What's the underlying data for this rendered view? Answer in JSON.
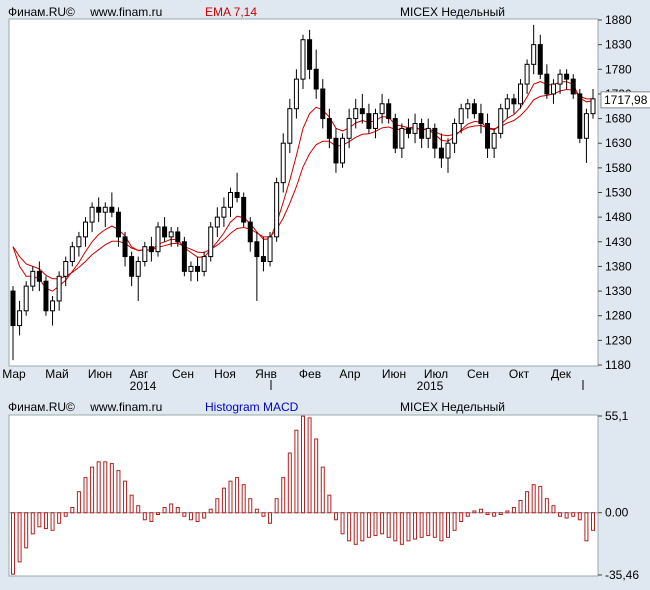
{
  "price_header": {
    "source": "Финам.RU©",
    "site": "www.finam.ru",
    "indicator": "EMA 7,14",
    "instrument": "MICEX Недельный"
  },
  "macd_header": {
    "source": "Финам.RU©",
    "site": "www.finam.ru",
    "indicator": "Histogram MACD",
    "instrument": "MICEX Недельный"
  },
  "colors": {
    "bull": "#ffffff",
    "bear": "#000000",
    "ema": "#cc0000",
    "hist": "#b22222",
    "background": "#dfe8f0",
    "plot": "#ffffff"
  },
  "chart_data": [
    {
      "type": "candlestick",
      "y_ticks": [
        "1880",
        "1830",
        "1780",
        "1730",
        "1680",
        "1630",
        "1580",
        "1530",
        "1480",
        "1430",
        "1380",
        "1330",
        "1280",
        "1230",
        "1180"
      ],
      "ylim": [
        1180,
        1880
      ],
      "last_price_label": "1717,98",
      "x_month_labels": [
        "Мар",
        "Май",
        "Июн",
        "Авг",
        "Сен",
        "Ноя",
        "Янв",
        "Фев",
        "Апр",
        "Июн",
        "Июл",
        "Сен",
        "Окт",
        "Дек"
      ],
      "year_labels": [
        "2014",
        "2015"
      ],
      "candles": [
        [
          1330,
          1340,
          1190,
          1260
        ],
        [
          1260,
          1310,
          1240,
          1290
        ],
        [
          1290,
          1350,
          1280,
          1340
        ],
        [
          1340,
          1380,
          1330,
          1370
        ],
        [
          1370,
          1390,
          1330,
          1350
        ],
        [
          1350,
          1360,
          1280,
          1290
        ],
        [
          1290,
          1320,
          1260,
          1310
        ],
        [
          1310,
          1370,
          1290,
          1360
        ],
        [
          1360,
          1400,
          1340,
          1390
        ],
        [
          1390,
          1430,
          1380,
          1420
        ],
        [
          1420,
          1450,
          1400,
          1440
        ],
        [
          1440,
          1480,
          1420,
          1470
        ],
        [
          1470,
          1510,
          1450,
          1500
        ],
        [
          1500,
          1520,
          1470,
          1490
        ],
        [
          1490,
          1510,
          1460,
          1500
        ],
        [
          1500,
          1530,
          1480,
          1490
        ],
        [
          1490,
          1500,
          1420,
          1440
        ],
        [
          1440,
          1450,
          1380,
          1400
        ],
        [
          1400,
          1410,
          1340,
          1360
        ],
        [
          1360,
          1400,
          1310,
          1390
        ],
        [
          1390,
          1430,
          1380,
          1420
        ],
        [
          1420,
          1440,
          1390,
          1410
        ],
        [
          1410,
          1470,
          1400,
          1460
        ],
        [
          1460,
          1480,
          1430,
          1440
        ],
        [
          1440,
          1460,
          1420,
          1450
        ],
        [
          1450,
          1460,
          1420,
          1430
        ],
        [
          1430,
          1440,
          1360,
          1370
        ],
        [
          1370,
          1390,
          1350,
          1380
        ],
        [
          1380,
          1400,
          1350,
          1370
        ],
        [
          1370,
          1410,
          1360,
          1400
        ],
        [
          1400,
          1470,
          1390,
          1460
        ],
        [
          1460,
          1500,
          1440,
          1480
        ],
        [
          1480,
          1520,
          1460,
          1500
        ],
        [
          1500,
          1540,
          1480,
          1530
        ],
        [
          1530,
          1570,
          1510,
          1520
        ],
        [
          1520,
          1530,
          1460,
          1470
        ],
        [
          1470,
          1480,
          1410,
          1430
        ],
        [
          1430,
          1450,
          1310,
          1400
        ],
        [
          1400,
          1440,
          1370,
          1390
        ],
        [
          1390,
          1450,
          1380,
          1440
        ],
        [
          1440,
          1560,
          1430,
          1550
        ],
        [
          1550,
          1650,
          1530,
          1630
        ],
        [
          1630,
          1720,
          1610,
          1700
        ],
        [
          1700,
          1780,
          1680,
          1760
        ],
        [
          1760,
          1850,
          1740,
          1840
        ],
        [
          1840,
          1860,
          1760,
          1780
        ],
        [
          1780,
          1820,
          1720,
          1740
        ],
        [
          1740,
          1760,
          1660,
          1680
        ],
        [
          1680,
          1700,
          1620,
          1640
        ],
        [
          1640,
          1660,
          1570,
          1590
        ],
        [
          1590,
          1650,
          1580,
          1640
        ],
        [
          1640,
          1700,
          1620,
          1680
        ],
        [
          1680,
          1720,
          1660,
          1700
        ],
        [
          1700,
          1730,
          1670,
          1690
        ],
        [
          1690,
          1710,
          1650,
          1660
        ],
        [
          1660,
          1700,
          1640,
          1690
        ],
        [
          1690,
          1730,
          1670,
          1710
        ],
        [
          1710,
          1720,
          1670,
          1680
        ],
        [
          1680,
          1690,
          1610,
          1620
        ],
        [
          1620,
          1670,
          1600,
          1660
        ],
        [
          1660,
          1680,
          1640,
          1650
        ],
        [
          1650,
          1690,
          1630,
          1670
        ],
        [
          1670,
          1680,
          1620,
          1640
        ],
        [
          1640,
          1680,
          1620,
          1660
        ],
        [
          1660,
          1670,
          1600,
          1620
        ],
        [
          1620,
          1650,
          1580,
          1600
        ],
        [
          1600,
          1640,
          1570,
          1630
        ],
        [
          1630,
          1680,
          1610,
          1670
        ],
        [
          1670,
          1710,
          1650,
          1700
        ],
        [
          1700,
          1720,
          1680,
          1710
        ],
        [
          1710,
          1720,
          1680,
          1690
        ],
        [
          1690,
          1710,
          1650,
          1670
        ],
        [
          1670,
          1690,
          1600,
          1620
        ],
        [
          1620,
          1660,
          1600,
          1650
        ],
        [
          1650,
          1710,
          1640,
          1700
        ],
        [
          1700,
          1730,
          1680,
          1720
        ],
        [
          1720,
          1730,
          1690,
          1710
        ],
        [
          1710,
          1760,
          1700,
          1750
        ],
        [
          1750,
          1800,
          1730,
          1790
        ],
        [
          1790,
          1870,
          1770,
          1830
        ],
        [
          1830,
          1850,
          1760,
          1770
        ],
        [
          1770,
          1790,
          1720,
          1730
        ],
        [
          1730,
          1760,
          1710,
          1750
        ],
        [
          1750,
          1780,
          1730,
          1770
        ],
        [
          1770,
          1780,
          1740,
          1760
        ],
        [
          1760,
          1770,
          1720,
          1730
        ],
        [
          1730,
          1740,
          1630,
          1640
        ],
        [
          1640,
          1700,
          1590,
          1690
        ],
        [
          1690,
          1740,
          1680,
          1720
        ]
      ],
      "ema7": [
        1420,
        1380,
        1360,
        1360,
        1355,
        1335,
        1330,
        1340,
        1352,
        1370,
        1388,
        1410,
        1430,
        1445,
        1455,
        1462,
        1455,
        1442,
        1420,
        1412,
        1414,
        1413,
        1425,
        1430,
        1435,
        1434,
        1418,
        1408,
        1399,
        1399,
        1414,
        1430,
        1448,
        1470,
        1482,
        1479,
        1467,
        1450,
        1435,
        1436,
        1468,
        1510,
        1555,
        1605,
        1660,
        1690,
        1703,
        1697,
        1683,
        1660,
        1655,
        1661,
        1671,
        1676,
        1672,
        1676,
        1684,
        1683,
        1667,
        1665,
        1661,
        1663,
        1657,
        1658,
        1648,
        1636,
        1634,
        1643,
        1657,
        1669,
        1674,
        1673,
        1660,
        1657,
        1668,
        1681,
        1688,
        1702,
        1724,
        1750,
        1755,
        1749,
        1749,
        1754,
        1755,
        1749,
        1722,
        1714,
        1716
      ],
      "ema14": [
        1420,
        1400,
        1385,
        1380,
        1375,
        1362,
        1355,
        1355,
        1360,
        1368,
        1378,
        1390,
        1404,
        1414,
        1424,
        1431,
        1431,
        1427,
        1417,
        1413,
        1414,
        1413,
        1419,
        1422,
        1426,
        1427,
        1420,
        1415,
        1409,
        1408,
        1415,
        1423,
        1434,
        1447,
        1457,
        1459,
        1456,
        1448,
        1440,
        1440,
        1455,
        1478,
        1508,
        1542,
        1582,
        1609,
        1627,
        1634,
        1634,
        1624,
        1626,
        1633,
        1642,
        1648,
        1649,
        1654,
        1661,
        1663,
        1658,
        1658,
        1658,
        1660,
        1658,
        1659,
        1654,
        1647,
        1645,
        1648,
        1655,
        1662,
        1665,
        1666,
        1661,
        1659,
        1664,
        1671,
        1676,
        1686,
        1700,
        1718,
        1725,
        1727,
        1730,
        1736,
        1739,
        1738,
        1725,
        1720,
        1720
      ]
    },
    {
      "type": "bar",
      "title": "Histogram MACD",
      "y_ticks": [
        "55,1",
        "0.00",
        "-35,46"
      ],
      "ylim": [
        -35.46,
        55.1
      ],
      "values": [
        -35,
        -28,
        -20,
        -12,
        -8,
        -9,
        -10,
        -6,
        -2,
        3,
        12,
        20,
        26,
        29,
        29,
        28,
        24,
        18,
        10,
        4,
        -4,
        -5,
        -1,
        3,
        5,
        3,
        -2,
        -4,
        -5,
        -3,
        2,
        8,
        14,
        18,
        20,
        16,
        8,
        2,
        -2,
        -6,
        8,
        20,
        34,
        47,
        55,
        54,
        42,
        26,
        10,
        -4,
        -12,
        -16,
        -18,
        -16,
        -14,
        -13,
        -12,
        -14,
        -16,
        -18,
        -16,
        -15,
        -14,
        -13,
        -14,
        -16,
        -14,
        -10,
        -5,
        -2,
        1,
        2,
        -1,
        -2,
        -1,
        1,
        3,
        7,
        12,
        16,
        15,
        8,
        4,
        -2,
        -3,
        -2,
        -4,
        -16,
        -10
      ]
    }
  ]
}
